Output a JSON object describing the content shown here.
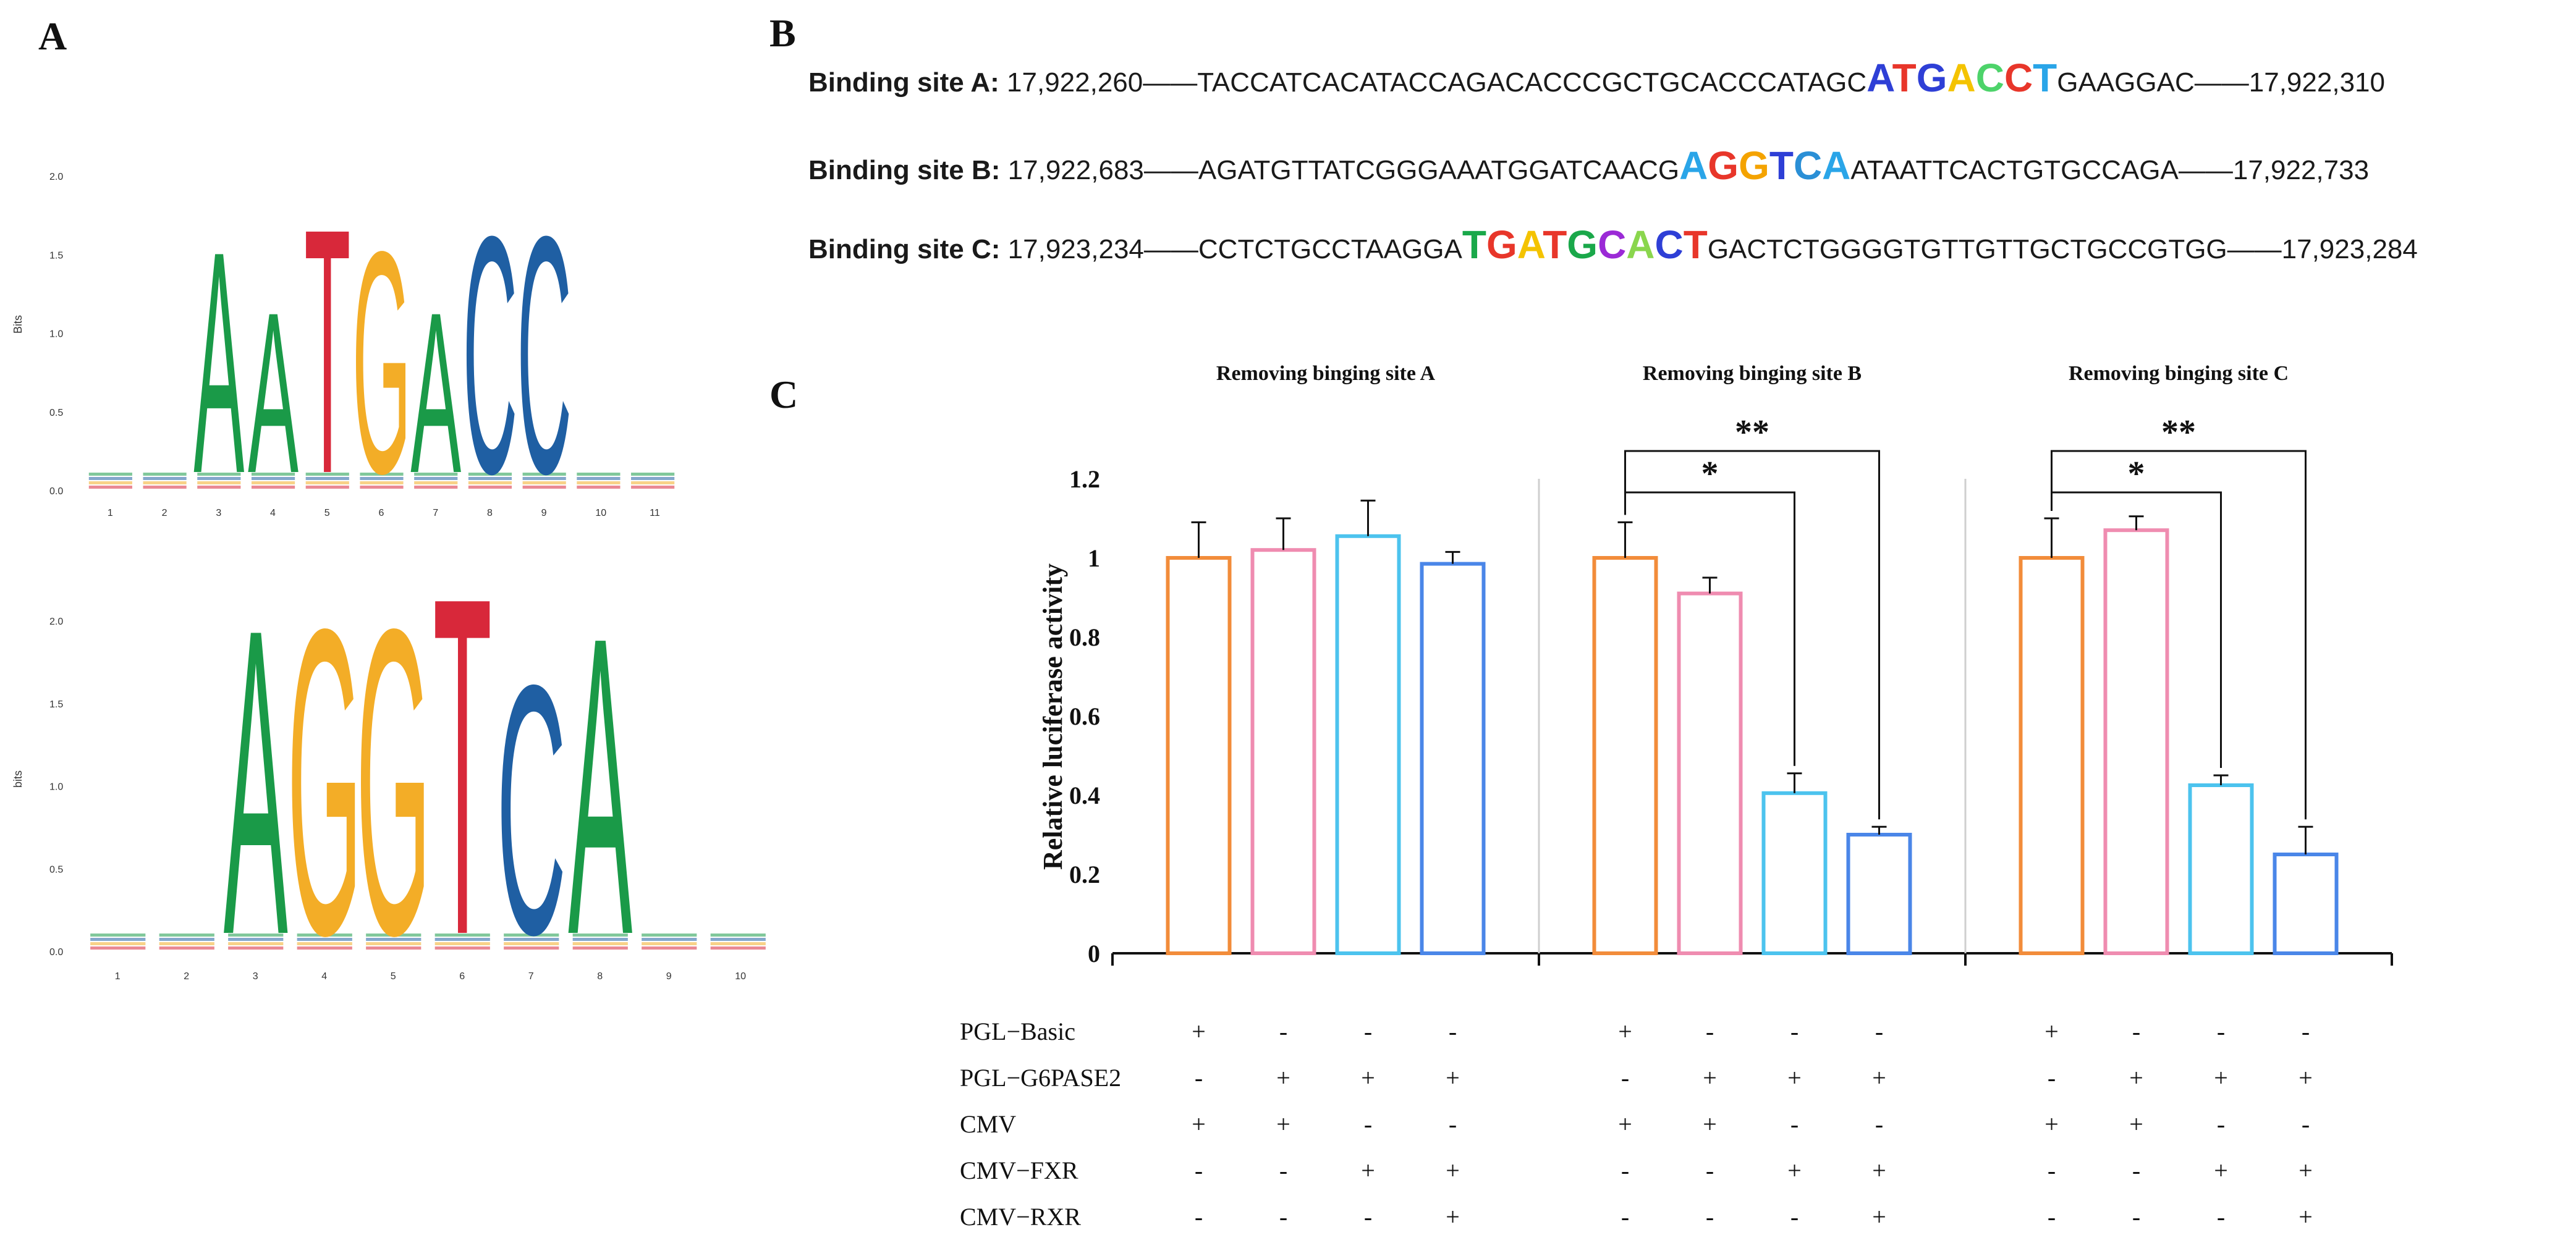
{
  "panels": {
    "a": "A",
    "b": "B",
    "c": "C"
  },
  "logos": [
    {
      "ylabel": "Bits",
      "yticks": [
        "0.0",
        "0.5",
        "1.0",
        "1.5",
        "2.0"
      ],
      "ymax": 2.0,
      "xticks": [
        "1",
        "2",
        "3",
        "4",
        "5",
        "6",
        "7",
        "8",
        "9",
        "10",
        "11"
      ],
      "letters": [
        {
          "pos": 3,
          "char": "A",
          "height": 1.45
        },
        {
          "pos": 4,
          "char": "A",
          "height": 1.05
        },
        {
          "pos": 5,
          "char": "T",
          "height": 1.6
        },
        {
          "pos": 6,
          "char": "G",
          "height": 1.45
        },
        {
          "pos": 7,
          "char": "A",
          "height": 1.05
        },
        {
          "pos": 8,
          "char": "C",
          "height": 1.55
        },
        {
          "pos": 9,
          "char": "C",
          "height": 1.55
        }
      ]
    },
    {
      "ylabel": "bits",
      "yticks": [
        "0.0",
        "0.5",
        "1.0",
        "1.5",
        "2.0"
      ],
      "ymax": 2.0,
      "xticks": [
        "1",
        "2",
        "3",
        "4",
        "5",
        "6",
        "7",
        "8",
        "9",
        "10"
      ],
      "letters": [
        {
          "pos": 3,
          "char": "A",
          "height": 1.9
        },
        {
          "pos": 4,
          "char": "G",
          "height": 1.9
        },
        {
          "pos": 5,
          "char": "G",
          "height": 1.9
        },
        {
          "pos": 6,
          "char": "T",
          "height": 2.1
        },
        {
          "pos": 7,
          "char": "C",
          "height": 1.55
        },
        {
          "pos": 8,
          "char": "A",
          "height": 1.85
        }
      ]
    }
  ],
  "binding_sites": [
    {
      "label": "Binding site A:",
      "start": "17,922,260",
      "pre": "TACCATCACATACCAGACACCCGCTGCACCCATAGC",
      "motif": "ATGACCT",
      "post": "GAAGGAC",
      "end": "17,922,310",
      "dash": "——"
    },
    {
      "label": "Binding site B:",
      "start": "17,922,683",
      "pre": "AGATGTTATCGGGAAATGGATCAACG",
      "motif": "AGGTCA",
      "post": "ATAATTCACTGTGCCAGA",
      "end": "17,922,733",
      "dash": "——"
    },
    {
      "label": "Binding site C:",
      "start": "17,923,234",
      "pre": "CCTCTGCCTAAGGA",
      "motif": "TGATGCACT",
      "post": "GACTCTGGGGTGTTGTTGCTGCCGTGG",
      "end": "17,923,284",
      "dash": "——"
    }
  ],
  "nucleotide_colors": {
    "A": "#2aa5e8",
    "T": "#e05a2a",
    "G": "#f4a300",
    "C": "#2e3fd6"
  },
  "motif_colors": [
    [
      "#2e3fd6",
      "#e8362a",
      "#2e3fd6",
      "#f4c300",
      "#4dd36a",
      "#e8362a",
      "#2aa5e8"
    ],
    [
      "#2aa5e8",
      "#e8362a",
      "#f4a300",
      "#2e3fd6",
      "#2a8fd6",
      "#2aa5e8"
    ],
    [
      "#1aa84a",
      "#e8362a",
      "#f4c300",
      "#e8362a",
      "#1aa84a",
      "#9b2ad6",
      "#8ad64d",
      "#2e3fd6",
      "#e8362a"
    ]
  ],
  "chart_data": {
    "type": "bar",
    "ylabel": "Relative luciferase activity",
    "ylim": [
      0,
      1.2
    ],
    "yticks": [
      "0",
      "0.2",
      "0.4",
      "0.6",
      "0.8",
      "1",
      "1.2"
    ],
    "groups": [
      {
        "title": "Removing  binging site A",
        "values": [
          1.0,
          1.02,
          1.055,
          0.985
        ],
        "errors": [
          0.09,
          0.08,
          0.09,
          0.03
        ],
        "sig": []
      },
      {
        "title": "Removing binging site B",
        "values": [
          1.0,
          0.91,
          0.405,
          0.3
        ],
        "errors": [
          0.09,
          0.04,
          0.05,
          0.02
        ],
        "sig": [
          {
            "to": 2,
            "label": "*"
          },
          {
            "to": 3,
            "label": "**"
          }
        ]
      },
      {
        "title": "Removing binging site C",
        "values": [
          1.0,
          1.07,
          0.425,
          0.25
        ],
        "errors": [
          0.1,
          0.035,
          0.025,
          0.07
        ],
        "sig": [
          {
            "to": 2,
            "label": "*"
          },
          {
            "to": 3,
            "label": "**"
          }
        ]
      }
    ],
    "bar_colors": [
      "#f28c3a",
      "#ef8cb0",
      "#4cc3ee",
      "#4a86e8"
    ],
    "conditions": [
      {
        "label": "PGL−Basic",
        "marks": [
          "+",
          "-",
          "-",
          "-"
        ]
      },
      {
        "label": "PGL−G6PASE2",
        "marks": [
          "-",
          "+",
          "+",
          "+"
        ]
      },
      {
        "label": "CMV",
        "marks": [
          "+",
          "+",
          "-",
          "-"
        ]
      },
      {
        "label": "CMV−FXR",
        "marks": [
          "-",
          "-",
          "+",
          "+"
        ]
      },
      {
        "label": "CMV−RXR",
        "marks": [
          "-",
          "-",
          "-",
          "+"
        ]
      }
    ]
  }
}
